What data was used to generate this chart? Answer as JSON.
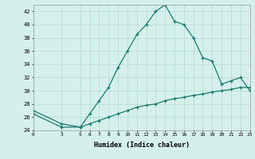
{
  "xlabel": "Humidex (Indice chaleur)",
  "ylabel": "",
  "bg_color": "#d5f0ec",
  "grid_color": "#b8ddd8",
  "line_color": "#1a7a6e",
  "x_main": [
    0,
    3,
    5,
    6,
    7,
    8,
    9,
    10,
    11,
    12,
    13,
    14,
    15,
    16,
    17,
    18,
    19,
    20,
    21,
    22,
    23
  ],
  "y_main": [
    27,
    25,
    24.5,
    26.5,
    28.5,
    30.5,
    33.5,
    36,
    38.5,
    40,
    42,
    43,
    40.5,
    40,
    38,
    35,
    34.5,
    31,
    31.5,
    32,
    30
  ],
  "x_flat": [
    0,
    3,
    5,
    6,
    7,
    8,
    9,
    10,
    11,
    12,
    13,
    14,
    15,
    16,
    17,
    18,
    19,
    20,
    21,
    22,
    23
  ],
  "y_flat": [
    26.5,
    24.5,
    24.5,
    25,
    25.5,
    26,
    26.5,
    27,
    27.5,
    27.8,
    28,
    28.5,
    28.8,
    29,
    29.3,
    29.5,
    29.8,
    30,
    30.2,
    30.5,
    30.5
  ],
  "xlim": [
    0,
    23
  ],
  "ylim": [
    24,
    43
  ],
  "yticks": [
    24,
    26,
    28,
    30,
    32,
    34,
    36,
    38,
    40,
    42
  ],
  "xticks": [
    0,
    3,
    5,
    6,
    7,
    8,
    9,
    10,
    11,
    12,
    13,
    14,
    15,
    16,
    17,
    18,
    19,
    20,
    21,
    22,
    23
  ],
  "xtick_labels": [
    "0",
    "3",
    "5",
    "6",
    "7",
    "8",
    "9",
    "10",
    "11",
    "12",
    "13",
    "14",
    "15",
    "16",
    "17",
    "18",
    "19",
    "20",
    "21",
    "22",
    "23"
  ],
  "marker": "+",
  "marker_size": 3.5,
  "line_width": 0.9
}
